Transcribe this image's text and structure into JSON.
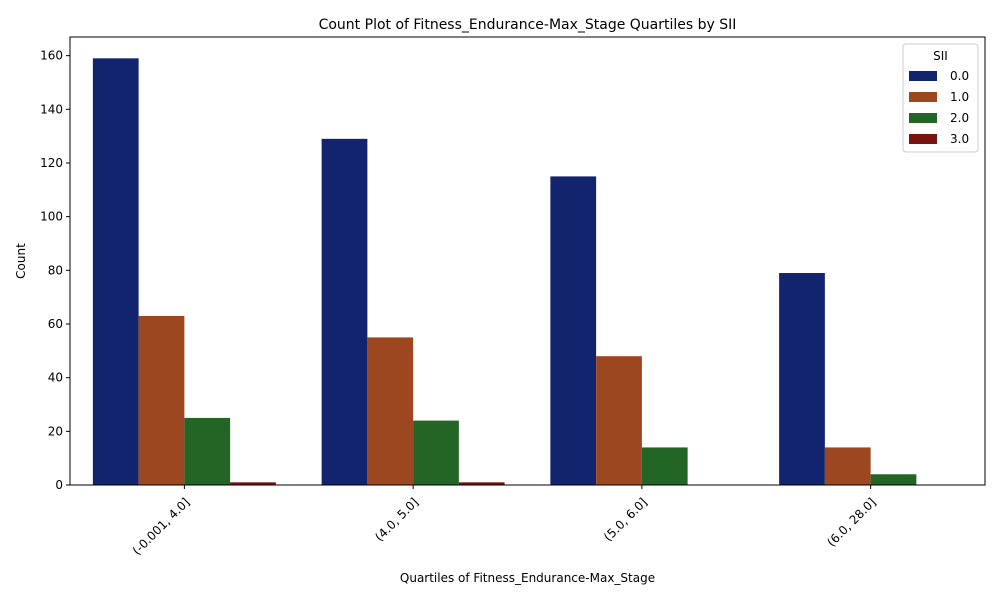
{
  "chart_data": {
    "type": "bar",
    "title": "Count Plot of Fitness_Endurance-Max_Stage Quartiles by SII",
    "xlabel": "Quartiles of Fitness_Endurance-Max_Stage",
    "ylabel": "Count",
    "ylim": [
      0,
      166.95
    ],
    "yticks": [
      0,
      20,
      40,
      60,
      80,
      100,
      120,
      140,
      160
    ],
    "categories": [
      "(-0.001, 4.0]",
      "(4.0, 5.0]",
      "(5.0, 6.0]",
      "(6.0, 28.0]"
    ],
    "series": [
      {
        "name": "0.0",
        "color": "#12246e",
        "values": [
          159,
          129,
          115,
          79
        ]
      },
      {
        "name": "1.0",
        "color": "#9d4720",
        "values": [
          63,
          55,
          48,
          14
        ]
      },
      {
        "name": "2.0",
        "color": "#226525",
        "values": [
          25,
          24,
          14,
          4
        ]
      },
      {
        "name": "3.0",
        "color": "#78130f",
        "values": [
          1,
          1,
          0,
          0
        ]
      }
    ],
    "legend": {
      "title": "SII",
      "position": "top-right"
    },
    "grid": false
  }
}
